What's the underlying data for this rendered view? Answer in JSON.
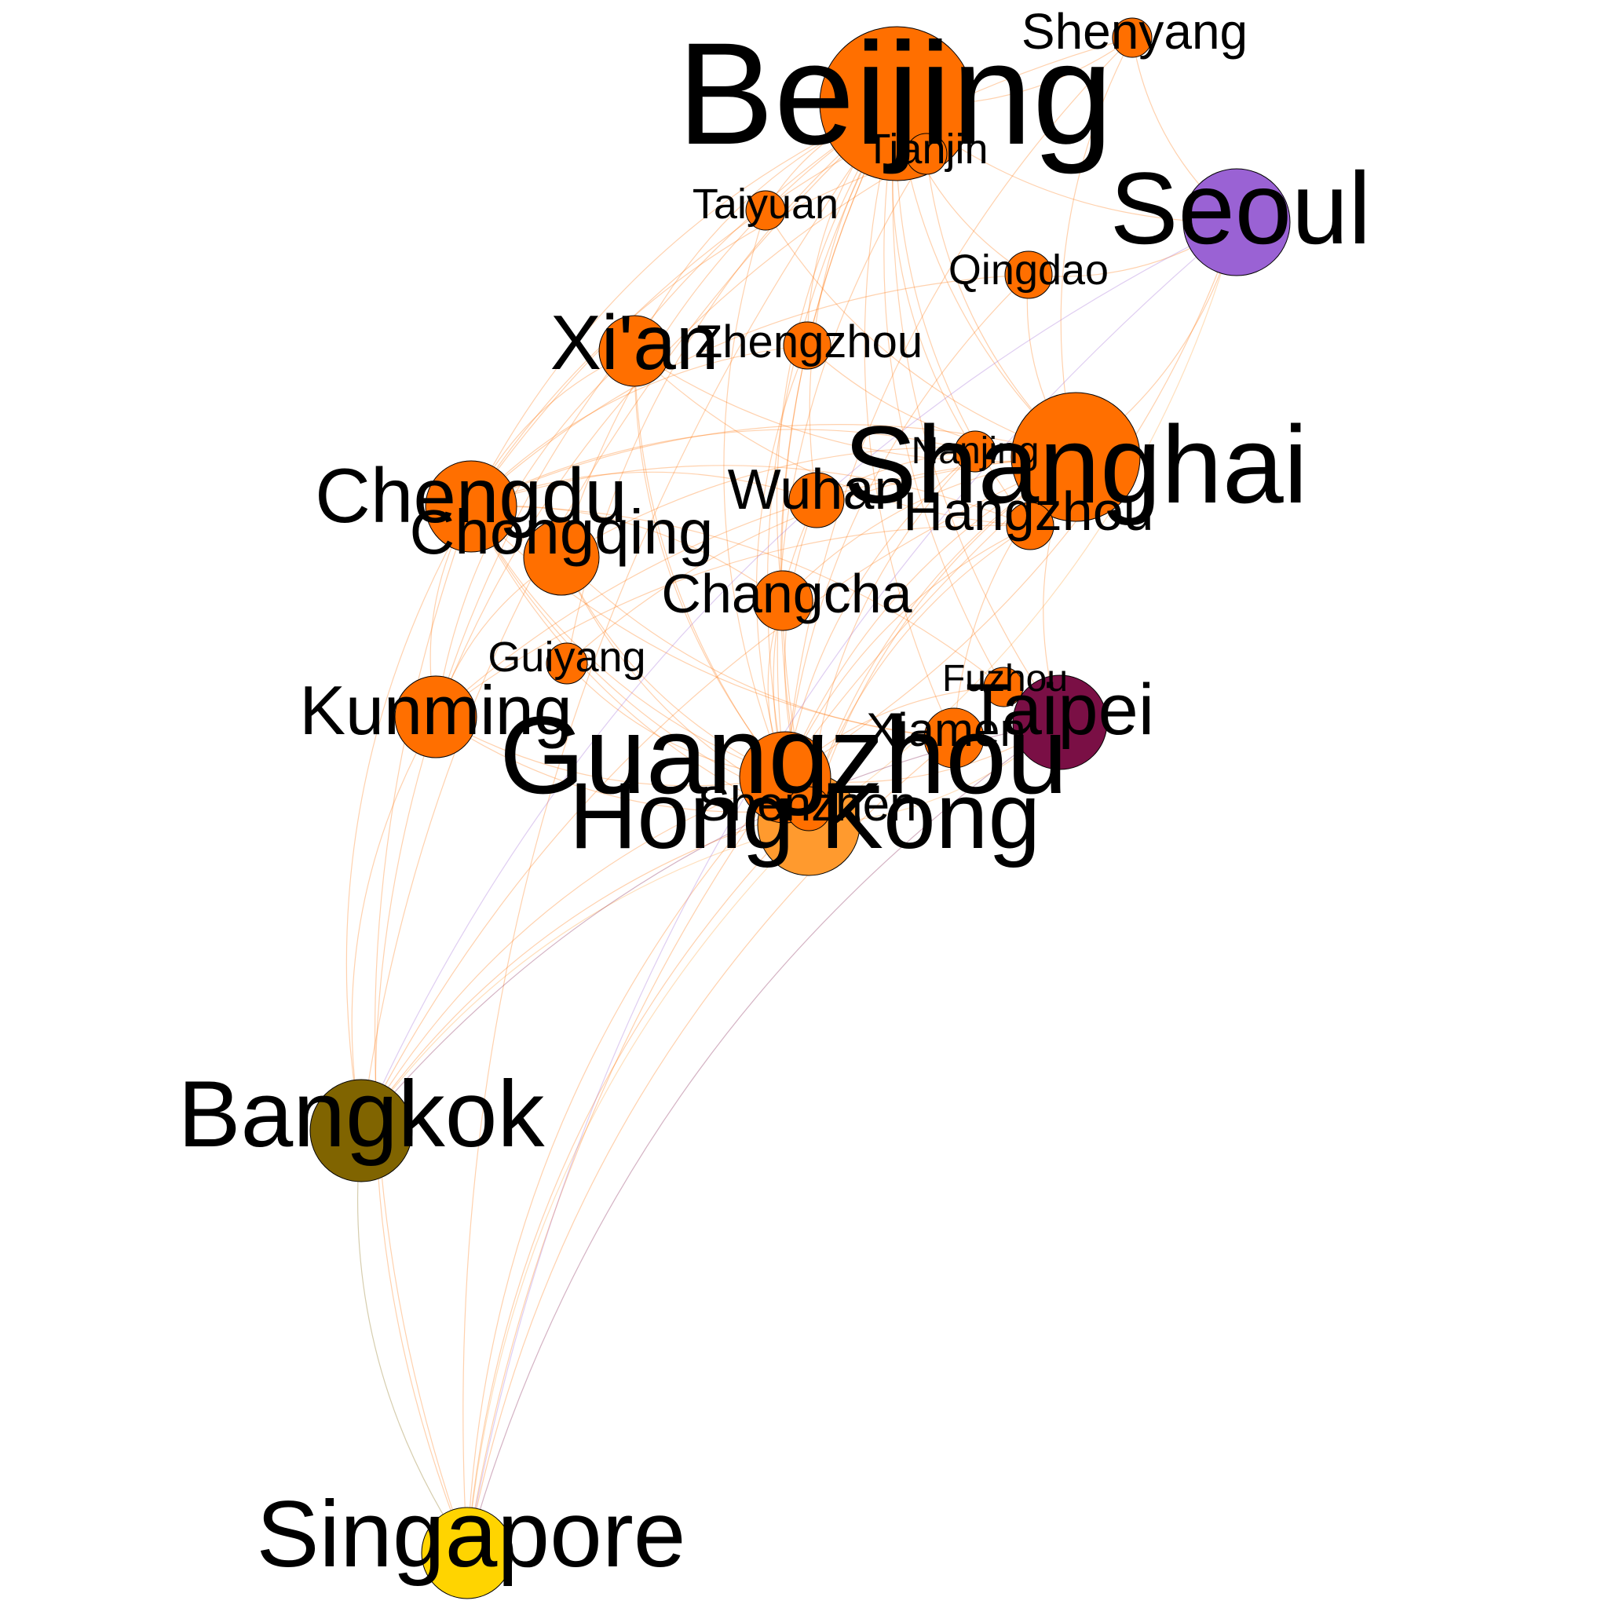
{
  "colors": {
    "background": "#ffffff",
    "china": "#ff6f00",
    "hongkong": "#ff9a2e",
    "seoul": "#9a62d4",
    "taipei": "#7a0f45",
    "bangkok": "#806400",
    "singapore": "#ffd400",
    "node_outline": "#000000",
    "label": "#000000"
  },
  "nodes": [
    {
      "id": "beijing",
      "label": "Beijing",
      "color": "china"
    },
    {
      "id": "shenyang",
      "label": "Shenyang",
      "color": "china"
    },
    {
      "id": "tianjin",
      "label": "Tianjin",
      "color": "china"
    },
    {
      "id": "seoul",
      "label": "Seoul",
      "color": "seoul"
    },
    {
      "id": "taiyuan",
      "label": "Taiyuan",
      "color": "china"
    },
    {
      "id": "qingdao",
      "label": "Qingdao",
      "color": "china"
    },
    {
      "id": "xian",
      "label": "Xi'an",
      "color": "china"
    },
    {
      "id": "zhengzhou",
      "label": "Zhengzhou",
      "color": "china"
    },
    {
      "id": "shanghai",
      "label": "Shanghai",
      "color": "china"
    },
    {
      "id": "nanjing",
      "label": "Nanjing",
      "color": "china"
    },
    {
      "id": "hangzhou",
      "label": "Hangzhou",
      "color": "china"
    },
    {
      "id": "chengdu",
      "label": "Chengdu",
      "color": "china"
    },
    {
      "id": "chongqing",
      "label": "Chongqing",
      "color": "china"
    },
    {
      "id": "wuhan",
      "label": "Wuhan",
      "color": "china"
    },
    {
      "id": "changcha",
      "label": "Changcha",
      "color": "china"
    },
    {
      "id": "guiyang",
      "label": "Guiyang",
      "color": "china"
    },
    {
      "id": "kunming",
      "label": "Kunming",
      "color": "china"
    },
    {
      "id": "fuzhou",
      "label": "Fuzhou",
      "color": "china"
    },
    {
      "id": "taipei",
      "label": "Taipei",
      "color": "taipei"
    },
    {
      "id": "xiamen",
      "label": "Xiamen",
      "color": "china"
    },
    {
      "id": "guangzhou",
      "label": "Guangzhou",
      "color": "china"
    },
    {
      "id": "shenzhen",
      "label": "Shenzhen",
      "color": "china"
    },
    {
      "id": "hongkong",
      "label": "Hong Kong",
      "color": "hongkong"
    },
    {
      "id": "bangkok",
      "label": "Bangkok",
      "color": "bangkok"
    },
    {
      "id": "singapore",
      "label": "Singapore",
      "color": "singapore"
    }
  ],
  "edges": [
    [
      "beijing",
      "shanghai"
    ],
    [
      "beijing",
      "guangzhou"
    ],
    [
      "beijing",
      "shenzhen"
    ],
    [
      "beijing",
      "chengdu"
    ],
    [
      "beijing",
      "chongqing"
    ],
    [
      "beijing",
      "xian"
    ],
    [
      "beijing",
      "kunming"
    ],
    [
      "beijing",
      "hangzhou"
    ],
    [
      "beijing",
      "wuhan"
    ],
    [
      "beijing",
      "changcha"
    ],
    [
      "beijing",
      "xiamen"
    ],
    [
      "beijing",
      "hongkong"
    ],
    [
      "beijing",
      "seoul"
    ],
    [
      "beijing",
      "taipei"
    ],
    [
      "beijing",
      "singapore"
    ],
    [
      "beijing",
      "bangkok"
    ],
    [
      "beijing",
      "shenyang"
    ],
    [
      "beijing",
      "qingdao"
    ],
    [
      "beijing",
      "taiyuan"
    ],
    [
      "beijing",
      "zhengzhou"
    ],
    [
      "beijing",
      "nanjing"
    ],
    [
      "beijing",
      "fuzhou"
    ],
    [
      "beijing",
      "guiyang"
    ],
    [
      "tianjin",
      "shanghai"
    ],
    [
      "tianjin",
      "guangzhou"
    ],
    [
      "tianjin",
      "chengdu"
    ],
    [
      "tianjin",
      "kunming"
    ],
    [
      "shenyang",
      "shanghai"
    ],
    [
      "shenyang",
      "guangzhou"
    ],
    [
      "shenyang",
      "chengdu"
    ],
    [
      "shenyang",
      "seoul"
    ],
    [
      "qingdao",
      "shanghai"
    ],
    [
      "qingdao",
      "guangzhou"
    ],
    [
      "qingdao",
      "seoul"
    ],
    [
      "qingdao",
      "chengdu"
    ],
    [
      "taiyuan",
      "shanghai"
    ],
    [
      "taiyuan",
      "guangzhou"
    ],
    [
      "xian",
      "shanghai"
    ],
    [
      "xian",
      "guangzhou"
    ],
    [
      "xian",
      "chengdu"
    ],
    [
      "xian",
      "kunming"
    ],
    [
      "xian",
      "hangzhou"
    ],
    [
      "xian",
      "shenzhen"
    ],
    [
      "zhengzhou",
      "shanghai"
    ],
    [
      "zhengzhou",
      "guangzhou"
    ],
    [
      "zhengzhou",
      "chengdu"
    ],
    [
      "shanghai",
      "guangzhou"
    ],
    [
      "shanghai",
      "shenzhen"
    ],
    [
      "shanghai",
      "chengdu"
    ],
    [
      "shanghai",
      "chongqing"
    ],
    [
      "shanghai",
      "kunming"
    ],
    [
      "shanghai",
      "hongkong"
    ],
    [
      "shanghai",
      "seoul"
    ],
    [
      "shanghai",
      "taipei"
    ],
    [
      "shanghai",
      "bangkok"
    ],
    [
      "shanghai",
      "singapore"
    ],
    [
      "shanghai",
      "xiamen"
    ],
    [
      "shanghai",
      "guiyang"
    ],
    [
      "shanghai",
      "changcha"
    ],
    [
      "shanghai",
      "wuhan"
    ],
    [
      "nanjing",
      "guangzhou"
    ],
    [
      "nanjing",
      "chengdu"
    ],
    [
      "nanjing",
      "shenzhen"
    ],
    [
      "hangzhou",
      "guangzhou"
    ],
    [
      "hangzhou",
      "chengdu"
    ],
    [
      "hangzhou",
      "shenzhen"
    ],
    [
      "hangzhou",
      "kunming"
    ],
    [
      "chengdu",
      "guangzhou"
    ],
    [
      "chengdu",
      "shenzhen"
    ],
    [
      "chengdu",
      "kunming"
    ],
    [
      "chengdu",
      "hongkong"
    ],
    [
      "chengdu",
      "xiamen"
    ],
    [
      "chengdu",
      "bangkok"
    ],
    [
      "chengdu",
      "singapore"
    ],
    [
      "chongqing",
      "guangzhou"
    ],
    [
      "chongqing",
      "shenzhen"
    ],
    [
      "chongqing",
      "kunming"
    ],
    [
      "chongqing",
      "xiamen"
    ],
    [
      "wuhan",
      "guangzhou"
    ],
    [
      "wuhan",
      "shenzhen"
    ],
    [
      "wuhan",
      "chengdu"
    ],
    [
      "changcha",
      "guangzhou"
    ],
    [
      "changcha",
      "chengdu"
    ],
    [
      "kunming",
      "guangzhou"
    ],
    [
      "kunming",
      "shenzhen"
    ],
    [
      "kunming",
      "bangkok"
    ],
    [
      "kunming",
      "singapore"
    ],
    [
      "guiyang",
      "guangzhou"
    ],
    [
      "guangzhou",
      "taipei"
    ],
    [
      "guangzhou",
      "bangkok"
    ],
    [
      "guangzhou",
      "singapore"
    ],
    [
      "guangzhou",
      "seoul"
    ],
    [
      "shenzhen",
      "bangkok"
    ],
    [
      "shenzhen",
      "singapore"
    ],
    [
      "hongkong",
      "bangkok"
    ],
    [
      "hongkong",
      "singapore"
    ],
    [
      "hongkong",
      "taipei"
    ],
    [
      "hongkong",
      "seoul"
    ],
    [
      "taipei",
      "bangkok"
    ],
    [
      "taipei",
      "singapore"
    ],
    [
      "seoul",
      "bangkok"
    ],
    [
      "seoul",
      "singapore"
    ],
    [
      "bangkok",
      "singapore"
    ],
    [
      "xiamen",
      "singapore"
    ],
    [
      "fuzhou",
      "guangzhou"
    ],
    [
      "fuzhou",
      "chengdu"
    ]
  ]
}
